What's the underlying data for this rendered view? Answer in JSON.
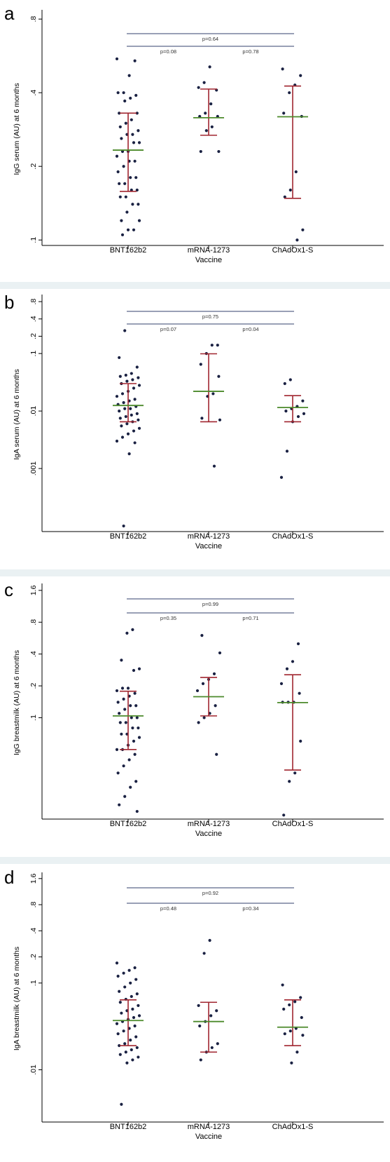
{
  "chart_data": [
    {
      "panel_label": "a",
      "type": "scatter",
      "ylabel": "IgG serum (AU) at 6 months",
      "xlabel": "Vaccine",
      "yscale": "log",
      "ylim": [
        0.095,
        0.85
      ],
      "yticks": [
        {
          "v": 0.1,
          "label": ".1"
        },
        {
          "v": 0.2,
          "label": ".2"
        },
        {
          "v": 0.4,
          "label": ".4"
        },
        {
          "v": 0.8,
          "label": ".8"
        }
      ],
      "categories": [
        "BNT162b2",
        "mRNA-1273",
        "ChAdOx1-S"
      ],
      "groups": [
        {
          "name": "BNT162b2",
          "mean": 0.233,
          "ci": [
            0.158,
            0.33
          ],
          "values": [
            0.55,
            0.54,
            0.47,
            0.4,
            0.4,
            0.39,
            0.38,
            0.37,
            0.33,
            0.33,
            0.31,
            0.3,
            0.29,
            0.28,
            0.27,
            0.27,
            0.26,
            0.25,
            0.25,
            0.23,
            0.23,
            0.22,
            0.21,
            0.21,
            0.2,
            0.19,
            0.18,
            0.18,
            0.17,
            0.17,
            0.16,
            0.16,
            0.15,
            0.15,
            0.14,
            0.14,
            0.13,
            0.12,
            0.12,
            0.11,
            0.11,
            0.105
          ]
        },
        {
          "name": "mRNA-1273",
          "mean": 0.316,
          "ci": [
            0.268,
            0.414
          ],
          "values": [
            0.51,
            0.44,
            0.42,
            0.41,
            0.36,
            0.33,
            0.32,
            0.32,
            0.29,
            0.28,
            0.23,
            0.23
          ]
        },
        {
          "name": "ChAdOx1-S",
          "mean": 0.319,
          "ci": [
            0.148,
            0.426
          ],
          "values": [
            0.5,
            0.47,
            0.43,
            0.4,
            0.33,
            0.32,
            0.19,
            0.16,
            0.15,
            0.11,
            0.1
          ]
        }
      ],
      "annotations": [
        {
          "from": 0,
          "to": 2,
          "text": "p=0.64"
        },
        {
          "from": 0,
          "to": 1,
          "text": "p=0.08"
        },
        {
          "from": 1,
          "to": 2,
          "text": "p=0.78"
        }
      ]
    },
    {
      "panel_label": "b",
      "type": "scatter",
      "ylabel": "IgA serum (AU) at 6 months",
      "xlabel": "Vaccine",
      "yscale": "log",
      "ylim": [
        8e-05,
        0.95
      ],
      "yticks": [
        {
          "v": 0.001,
          "label": ".001"
        },
        {
          "v": 0.01,
          "label": ".01"
        },
        {
          "v": 0.1,
          "label": ".1"
        },
        {
          "v": 0.2,
          "label": ".2"
        },
        {
          "v": 0.4,
          "label": ".4"
        },
        {
          "v": 0.8,
          "label": ".8"
        }
      ],
      "categories": [
        "BNT162b2",
        "mRNA-1273",
        "ChAdOx1-S"
      ],
      "groups": [
        {
          "name": "BNT162b2",
          "mean": 0.0125,
          "ci": [
            0.0065,
            0.03
          ],
          "values": [
            0.25,
            0.085,
            0.058,
            0.045,
            0.042,
            0.04,
            0.038,
            0.035,
            0.033,
            0.03,
            0.028,
            0.025,
            0.022,
            0.02,
            0.018,
            0.016,
            0.015,
            0.014,
            0.013,
            0.012,
            0.011,
            0.011,
            0.01,
            0.009,
            0.0085,
            0.008,
            0.0075,
            0.007,
            0.0065,
            0.006,
            0.0055,
            0.005,
            0.0045,
            0.004,
            0.0035,
            0.003,
            0.0028,
            0.0018,
            0.0001
          ]
        },
        {
          "name": "mRNA-1273",
          "mean": 0.022,
          "ci": [
            0.0065,
            0.099
          ],
          "values": [
            0.14,
            0.14,
            0.1,
            0.065,
            0.04,
            0.02,
            0.018,
            0.0075,
            0.007,
            0.0011
          ]
        },
        {
          "name": "ChAdOx1-S",
          "mean": 0.0115,
          "ci": [
            0.0065,
            0.0185
          ],
          "values": [
            0.035,
            0.03,
            0.015,
            0.012,
            0.011,
            0.01,
            0.009,
            0.008,
            0.0065,
            0.002,
            0.0007
          ]
        }
      ],
      "annotations": [
        {
          "from": 0,
          "to": 2,
          "text": "p=0.75"
        },
        {
          "from": 0,
          "to": 1,
          "text": "p=0.07"
        },
        {
          "from": 1,
          "to": 2,
          "text": "p=0.04"
        }
      ]
    },
    {
      "panel_label": "c",
      "type": "scatter",
      "ylabel": "IgG breastmilk (AU) at 6 months",
      "xlabel": "Vaccine",
      "yscale": "log",
      "ylim": [
        0.011,
        1.75
      ],
      "yticks": [
        {
          "v": 0.1,
          "label": ".1"
        },
        {
          "v": 0.2,
          "label": ".2"
        },
        {
          "v": 0.4,
          "label": ".4"
        },
        {
          "v": 0.8,
          "label": ".8"
        },
        {
          "v": 1.6,
          "label": "1.6"
        }
      ],
      "categories": [
        "BNT162b2",
        "mRNA-1273",
        "ChAdOx1-S"
      ],
      "groups": [
        {
          "name": "BNT162b2",
          "mean": 0.104,
          "ci": [
            0.05,
            0.178
          ],
          "values": [
            0.68,
            0.63,
            0.35,
            0.29,
            0.28,
            0.19,
            0.19,
            0.18,
            0.17,
            0.16,
            0.15,
            0.14,
            0.13,
            0.13,
            0.12,
            0.11,
            0.1,
            0.1,
            0.09,
            0.09,
            0.08,
            0.08,
            0.07,
            0.07,
            0.065,
            0.06,
            0.055,
            0.05,
            0.05,
            0.045,
            0.04,
            0.035,
            0.03,
            0.025,
            0.022,
            0.018,
            0.015,
            0.013
          ]
        },
        {
          "name": "mRNA-1273",
          "mean": 0.158,
          "ci": [
            0.104,
            0.24
          ],
          "values": [
            0.6,
            0.41,
            0.26,
            0.23,
            0.21,
            0.18,
            0.13,
            0.11,
            0.1,
            0.09,
            0.045
          ]
        },
        {
          "name": "ChAdOx1-S",
          "mean": 0.139,
          "ci": [
            0.032,
            0.255
          ],
          "values": [
            0.5,
            0.34,
            0.29,
            0.21,
            0.17,
            0.14,
            0.14,
            0.14,
            0.06,
            0.03,
            0.025,
            0.012
          ]
        }
      ],
      "annotations": [
        {
          "from": 0,
          "to": 2,
          "text": "p=0.99"
        },
        {
          "from": 0,
          "to": 1,
          "text": "p=0.35"
        },
        {
          "from": 1,
          "to": 2,
          "text": "p=0.71"
        }
      ]
    },
    {
      "panel_label": "d",
      "type": "scatter",
      "ylabel": "IgA breastmilk (AU) at 6 months",
      "xlabel": "Vaccine",
      "yscale": "log",
      "ylim": [
        0.0025,
        1.75
      ],
      "yticks": [
        {
          "v": 0.01,
          "label": ".01"
        },
        {
          "v": 0.1,
          "label": ".1"
        },
        {
          "v": 0.2,
          "label": ".2"
        },
        {
          "v": 0.4,
          "label": ".4"
        },
        {
          "v": 0.8,
          "label": ".8"
        },
        {
          "v": 1.6,
          "label": "1.6"
        }
      ],
      "categories": [
        "BNT162b2",
        "mRNA-1273",
        "ChAdOx1-S"
      ],
      "groups": [
        {
          "name": "BNT162b2",
          "mean": 0.037,
          "ci": [
            0.019,
            0.064
          ],
          "values": [
            0.17,
            0.15,
            0.14,
            0.13,
            0.12,
            0.11,
            0.1,
            0.09,
            0.08,
            0.075,
            0.07,
            0.065,
            0.06,
            0.055,
            0.05,
            0.048,
            0.045,
            0.042,
            0.04,
            0.038,
            0.036,
            0.034,
            0.032,
            0.03,
            0.028,
            0.026,
            0.024,
            0.022,
            0.02,
            0.019,
            0.018,
            0.017,
            0.016,
            0.015,
            0.014,
            0.013,
            0.012,
            0.004
          ]
        },
        {
          "name": "mRNA-1273",
          "mean": 0.036,
          "ci": [
            0.016,
            0.06
          ],
          "values": [
            0.31,
            0.22,
            0.055,
            0.048,
            0.042,
            0.036,
            0.032,
            0.02,
            0.018,
            0.016,
            0.013
          ]
        },
        {
          "name": "ChAdOx1-S",
          "mean": 0.031,
          "ci": [
            0.019,
            0.064
          ],
          "values": [
            0.095,
            0.068,
            0.061,
            0.056,
            0.05,
            0.04,
            0.03,
            0.028,
            0.026,
            0.025,
            0.016,
            0.012
          ]
        }
      ],
      "annotations": [
        {
          "from": 0,
          "to": 2,
          "text": "p=0.92"
        },
        {
          "from": 0,
          "to": 1,
          "text": "p=0.48"
        },
        {
          "from": 1,
          "to": 2,
          "text": "p=0.34"
        }
      ]
    }
  ],
  "colors": {
    "panel_bg": "#ffffff",
    "outer_bg": "#eaf1f3",
    "point": "#1a2142",
    "ci": "#a0252f",
    "mean": "#4c8a2b",
    "bracket": "#33406e",
    "axis": "#000000"
  }
}
